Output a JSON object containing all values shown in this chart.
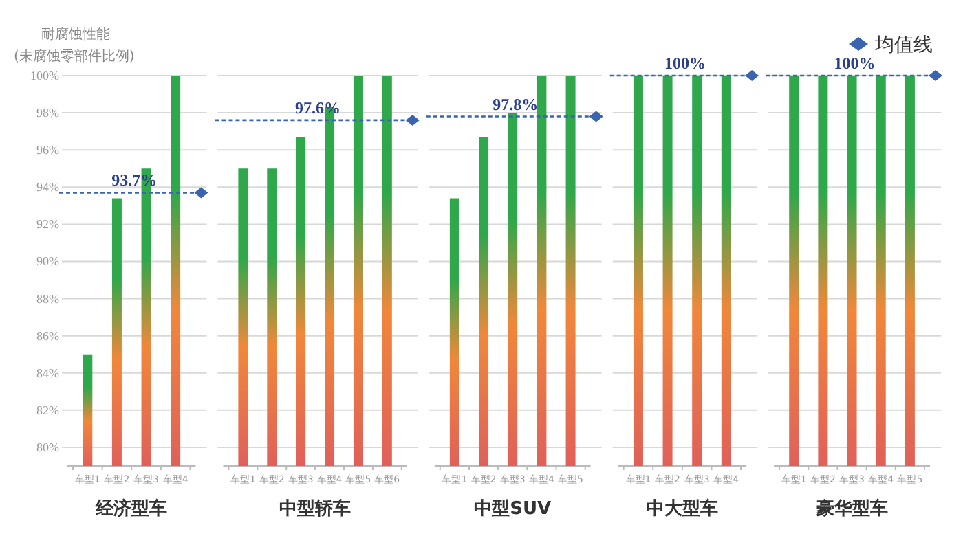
{
  "chart_data": [
    {
      "type": "bar",
      "ylabel": "耐腐蚀性能\n(未腐蚀零部件比例)",
      "xlabel": "经济型车",
      "categories": [
        "车型1",
        "车型2",
        "车型3",
        "车型4"
      ],
      "series": [
        {
          "color": "#2ea84a",
          "values": [
            85.0,
            93.4,
            95.0,
            100
          ]
        }
      ],
      "ylim": [
        79,
        100
      ],
      "yticks": [
        {
          "value": 80,
          "label": "80%"
        },
        {
          "value": 82,
          "label": "82%"
        },
        {
          "value": 84,
          "label": "84%"
        },
        {
          "value": 86,
          "label": "86%"
        },
        {
          "value": 88,
          "label": "88%"
        },
        {
          "value": 90,
          "label": "90%"
        },
        {
          "value": 92,
          "label": "92%"
        },
        {
          "value": 94,
          "label": "94%"
        },
        {
          "value": 96,
          "label": "96%"
        },
        {
          "value": 98,
          "label": "98%"
        },
        {
          "value": 100,
          "label": "100%"
        }
      ],
      "grid": "y",
      "ref_lines": [
        {
          "axis": "y",
          "value": 93.7,
          "label": "93.7%",
          "color": "#3a64b0",
          "line_style": "dashed"
        }
      ]
    },
    {
      "type": "bar",
      "xlabel": "中型轿车",
      "categories": [
        "车型1",
        "车型2",
        "车型3",
        "车型4",
        "车型5",
        "车型6"
      ],
      "series": [
        {
          "color": "#2ea84a",
          "values": [
            95.0,
            95.0,
            96.7,
            98.3,
            100,
            100
          ]
        }
      ],
      "ylim": [
        79,
        100
      ],
      "grid": "y",
      "tick_labels": "x",
      "ref_lines": [
        {
          "axis": "y",
          "value": 97.6,
          "label": "97.6%",
          "color": "#3a64b0",
          "line_style": "dashed"
        }
      ]
    },
    {
      "type": "bar",
      "xlabel": "中型SUV",
      "categories": [
        "车型1",
        "车型2",
        "车型3",
        "车型4",
        "车型5"
      ],
      "series": [
        {
          "color": "#2ea84a",
          "values": [
            93.4,
            96.7,
            98.0,
            100,
            100
          ]
        }
      ],
      "ylim": [
        79,
        100
      ],
      "grid": "y",
      "tick_labels": "x",
      "ref_lines": [
        {
          "axis": "y",
          "value": 97.8,
          "label": "97.8%",
          "color": "#3a64b0",
          "line_style": "dashed"
        }
      ]
    },
    {
      "type": "bar",
      "xlabel": "中大型车",
      "categories": [
        "车型1",
        "车型2",
        "车型3",
        "车型4"
      ],
      "series": [
        {
          "color": "#2ea84a",
          "values": [
            100,
            100,
            100,
            100
          ]
        }
      ],
      "ylim": [
        79,
        100
      ],
      "grid": "y",
      "tick_labels": "x",
      "ref_lines": [
        {
          "axis": "y",
          "value": 100,
          "label": "100%",
          "color": "#3a64b0",
          "line_style": "dashed"
        }
      ]
    },
    {
      "type": "bar",
      "xlabel": "豪华型车",
      "categories": [
        "车型1",
        "车型2",
        "车型3",
        "车型4",
        "车型5"
      ],
      "series": [
        {
          "color": "#2ea84a",
          "values": [
            100,
            100,
            100,
            100,
            100
          ]
        }
      ],
      "ylim": [
        79,
        100
      ],
      "grid": "y",
      "tick_labels": "x",
      "legend": "top right",
      "legend_title": "均值线",
      "ref_lines": [
        {
          "axis": "y",
          "value": 100,
          "label": "100%",
          "color": "#3a64b0",
          "line_style": "dashed"
        }
      ]
    }
  ]
}
